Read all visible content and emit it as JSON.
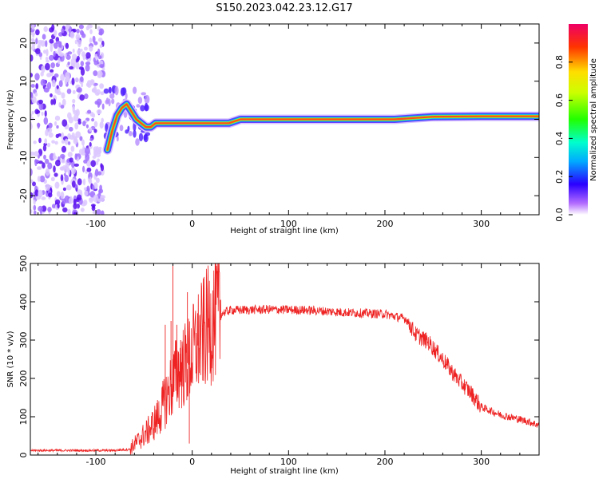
{
  "title": "S150.2023.042.23.12.G17",
  "chart_data": [
    {
      "type": "heatmap",
      "xlabel": "Height of straight line (km)",
      "ylabel": "Frequency (Hz)",
      "xlim": [
        -168,
        360
      ],
      "ylim": [
        -25,
        25
      ],
      "x_ticks": [
        -100,
        0,
        100,
        200,
        300
      ],
      "y_ticks": [
        -20,
        -10,
        0,
        10,
        20
      ],
      "colorbar": {
        "label": "Normalized spectral amplitude",
        "range": [
          0,
          1
        ],
        "ticks": [
          "0.0",
          "0.2",
          "0.4",
          "0.6",
          "0.8"
        ]
      },
      "ridge": [
        {
          "x": -88,
          "y": -8
        },
        {
          "x": -83,
          "y": -3
        },
        {
          "x": -78,
          "y": 1
        },
        {
          "x": -73,
          "y": 3
        },
        {
          "x": -68,
          "y": 4
        },
        {
          "x": -63,
          "y": 2
        },
        {
          "x": -58,
          "y": 0
        },
        {
          "x": -53,
          "y": -1
        },
        {
          "x": -48,
          "y": -2
        },
        {
          "x": -43,
          "y": -2
        },
        {
          "x": -38,
          "y": -1
        },
        {
          "x": -33,
          "y": -1
        },
        {
          "x": -28,
          "y": -1
        },
        {
          "x": -20,
          "y": -1
        },
        {
          "x": 0,
          "y": -1
        },
        {
          "x": 20,
          "y": -1
        },
        {
          "x": 38,
          "y": -1
        },
        {
          "x": 50,
          "y": 0
        },
        {
          "x": 100,
          "y": 0
        },
        {
          "x": 150,
          "y": 0
        },
        {
          "x": 210,
          "y": 0
        },
        {
          "x": 250,
          "y": 0.7
        },
        {
          "x": 300,
          "y": 0.8
        },
        {
          "x": 360,
          "y": 0.8
        }
      ]
    },
    {
      "type": "line",
      "xlabel": "Height of straight line (km)",
      "ylabel": "SNR (10 * v/v)",
      "xlim": [
        -168,
        360
      ],
      "ylim": [
        0,
        500
      ],
      "x_ticks": [
        -100,
        0,
        100,
        200,
        300
      ],
      "y_ticks": [
        0,
        100,
        200,
        300,
        400,
        500
      ],
      "series_color": "#ee2222",
      "snr_profile": [
        {
          "x": -168,
          "y": 12
        },
        {
          "x": -120,
          "y": 12
        },
        {
          "x": -80,
          "y": 12
        },
        {
          "x": -65,
          "y": 15
        },
        {
          "x": -55,
          "y": 40
        },
        {
          "x": -45,
          "y": 65
        },
        {
          "x": -35,
          "y": 100
        },
        {
          "x": -25,
          "y": 160
        },
        {
          "x": -15,
          "y": 220
        },
        {
          "x": -5,
          "y": 240
        },
        {
          "x": 5,
          "y": 290
        },
        {
          "x": 15,
          "y": 330
        },
        {
          "x": 25,
          "y": 365
        },
        {
          "x": 40,
          "y": 378
        },
        {
          "x": 80,
          "y": 380
        },
        {
          "x": 120,
          "y": 378
        },
        {
          "x": 160,
          "y": 372
        },
        {
          "x": 200,
          "y": 368
        },
        {
          "x": 222,
          "y": 355
        },
        {
          "x": 232,
          "y": 315
        },
        {
          "x": 245,
          "y": 295
        },
        {
          "x": 260,
          "y": 250
        },
        {
          "x": 275,
          "y": 200
        },
        {
          "x": 290,
          "y": 160
        },
        {
          "x": 300,
          "y": 125
        },
        {
          "x": 320,
          "y": 105
        },
        {
          "x": 345,
          "y": 90
        },
        {
          "x": 360,
          "y": 78
        }
      ],
      "spikes": [
        {
          "x": -28,
          "y": 340
        },
        {
          "x": -22,
          "y": 350
        },
        {
          "x": -20,
          "y": 500
        },
        {
          "x": -16,
          "y": 340
        },
        {
          "x": -12,
          "y": 300
        },
        {
          "x": -5,
          "y": 425
        },
        {
          "x": -3,
          "y": 30
        }
      ]
    }
  ]
}
